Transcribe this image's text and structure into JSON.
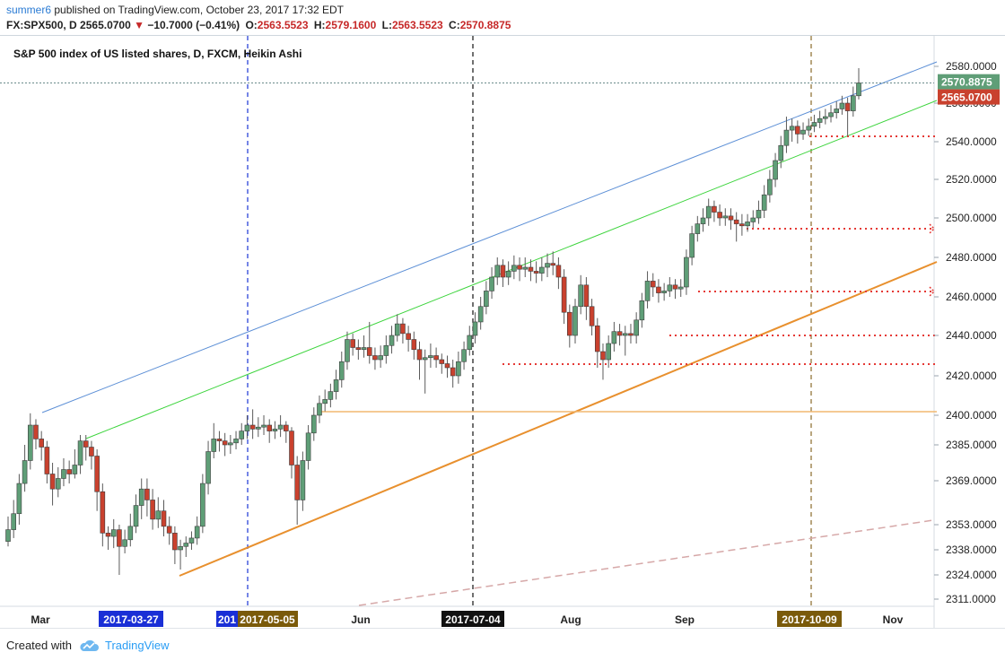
{
  "header": {
    "author": "summer6",
    "published_text": "published on TradingView.com, October 23, 2017 17:32 EDT",
    "symbol": "FX:SPX500, D",
    "last": "2565.0700",
    "change_arrow": "▼",
    "change": "−10.7000 (−0.41%)",
    "o_label": "O:",
    "o_value": "2563.5523",
    "h_label": "H:",
    "h_value": "2579.1600",
    "l_label": "L:",
    "l_value": "2563.5523",
    "c_label": "C:",
    "c_value": "2570.8875"
  },
  "footer": {
    "created_with": "Created with",
    "brand": "TradingView",
    "brand_icon": "tradingview-cloud-icon"
  },
  "colors": {
    "up": "#5f9e77",
    "down": "#c9412e",
    "accent": "#2a9df4"
  },
  "chart_data": {
    "type": "candlestick",
    "title": "S&P 500 index of US listed shares, D, FXCM, Heikin Ashi",
    "y_axis": {
      "position": "right",
      "ticks": [
        "2580.0000",
        "2560.0000",
        "2540.0000",
        "2520.0000",
        "2500.0000",
        "2480.0000",
        "2460.0000",
        "2440.0000",
        "2420.0000",
        "2400.0000",
        "2385.0000",
        "2369.0000",
        "2353.0000",
        "2338.0000",
        "2324.0000",
        "2311.0000"
      ],
      "range": [
        2308,
        2588
      ]
    },
    "x_axis": {
      "month_labels": [
        "Mar",
        "Jun",
        "Aug",
        "Sep",
        "Nov"
      ],
      "date_markers": [
        "2017-03-27",
        "201",
        "2017-05-05",
        "2017-07-04",
        "2017-10-09"
      ]
    },
    "price_labels": [
      {
        "value": "2570.8875",
        "price": 2570.8875,
        "color": "#5f9e77"
      },
      {
        "value": "2565.0700",
        "price": 2565.07,
        "color": "#c9412e"
      }
    ],
    "candles": [
      [
        2343.0,
        2350.0,
        2356.0,
        2340.0
      ],
      [
        2350.0,
        2357.0,
        2362.0,
        2345.0
      ],
      [
        2357.0,
        2368.0,
        2372.0,
        2353.0
      ],
      [
        2368.0,
        2378.0,
        2385.0,
        2365.0
      ],
      [
        2378.0,
        2395.0,
        2401.0,
        2374.0
      ],
      [
        2395.0,
        2388.0,
        2398.0,
        2383.0
      ],
      [
        2388.0,
        2384.0,
        2392.0,
        2378.0
      ],
      [
        2384.0,
        2372.0,
        2387.0,
        2368.0
      ],
      [
        2372.0,
        2366.0,
        2377.0,
        2360.0
      ],
      [
        2366.0,
        2370.0,
        2375.0,
        2363.0
      ],
      [
        2370.0,
        2374.0,
        2379.0,
        2367.0
      ],
      [
        2374.0,
        2372.0,
        2378.0,
        2368.0
      ],
      [
        2372.0,
        2376.0,
        2383.0,
        2370.0
      ],
      [
        2376.0,
        2387.0,
        2390.0,
        2372.0
      ],
      [
        2387.0,
        2384.0,
        2390.0,
        2378.0
      ],
      [
        2384.0,
        2380.0,
        2387.0,
        2374.0
      ],
      [
        2380.0,
        2365.0,
        2383.0,
        2358.0
      ],
      [
        2365.0,
        2348.0,
        2368.0,
        2340.0
      ],
      [
        2348.0,
        2346.0,
        2352.0,
        2338.0
      ],
      [
        2346.0,
        2350.0,
        2355.0,
        2339.0
      ],
      [
        2350.0,
        2340.0,
        2353.0,
        2324.0
      ],
      [
        2340.0,
        2344.0,
        2350.0,
        2336.0
      ],
      [
        2344.0,
        2352.0,
        2357.0,
        2340.0
      ],
      [
        2352.0,
        2360.0,
        2364.0,
        2348.0
      ],
      [
        2360.0,
        2366.0,
        2370.0,
        2355.0
      ],
      [
        2366.0,
        2362.0,
        2370.0,
        2356.0
      ],
      [
        2362.0,
        2355.0,
        2366.0,
        2350.0
      ],
      [
        2355.0,
        2358.0,
        2363.0,
        2351.0
      ],
      [
        2358.0,
        2352.0,
        2362.0,
        2346.0
      ],
      [
        2352.0,
        2348.0,
        2356.0,
        2341.0
      ],
      [
        2348.0,
        2338.0,
        2352.0,
        2330.0
      ],
      [
        2338.0,
        2340.0,
        2344.0,
        2327.0
      ],
      [
        2340.0,
        2342.0,
        2346.0,
        2334.0
      ],
      [
        2342.0,
        2345.0,
        2349.0,
        2338.0
      ],
      [
        2345.0,
        2352.0,
        2356.0,
        2341.0
      ],
      [
        2352.0,
        2368.0,
        2372.0,
        2348.0
      ],
      [
        2368.0,
        2382.0,
        2387.0,
        2364.0
      ],
      [
        2382.0,
        2388.0,
        2396.0,
        2379.0
      ],
      [
        2388.0,
        2387.0,
        2392.0,
        2382.0
      ],
      [
        2387.0,
        2385.0,
        2391.0,
        2380.0
      ],
      [
        2385.0,
        2386.0,
        2390.0,
        2381.0
      ],
      [
        2386.0,
        2388.0,
        2392.0,
        2383.0
      ],
      [
        2388.0,
        2392.0,
        2396.0,
        2385.0
      ],
      [
        2392.0,
        2395.0,
        2400.0,
        2388.0
      ],
      [
        2395.0,
        2393.0,
        2403.0,
        2388.0
      ],
      [
        2393.0,
        2394.0,
        2399.0,
        2389.0
      ],
      [
        2394.0,
        2395.0,
        2400.0,
        2390.0
      ],
      [
        2395.0,
        2392.0,
        2398.0,
        2386.0
      ],
      [
        2392.0,
        2393.0,
        2397.0,
        2388.0
      ],
      [
        2393.0,
        2395.0,
        2400.0,
        2389.0
      ],
      [
        2395.0,
        2392.0,
        2397.0,
        2386.0
      ],
      [
        2392.0,
        2376.0,
        2394.0,
        2370.0
      ],
      [
        2376.0,
        2362.0,
        2380.0,
        2353.0
      ],
      [
        2362.0,
        2378.0,
        2382.0,
        2358.0
      ],
      [
        2378.0,
        2391.0,
        2395.0,
        2374.0
      ],
      [
        2391.0,
        2400.0,
        2404.0,
        2387.0
      ],
      [
        2400.0,
        2406.0,
        2410.0,
        2396.0
      ],
      [
        2406.0,
        2408.0,
        2413.0,
        2402.0
      ],
      [
        2408.0,
        2412.0,
        2416.0,
        2404.0
      ],
      [
        2412.0,
        2418.0,
        2423.0,
        2408.0
      ],
      [
        2418.0,
        2427.0,
        2432.0,
        2414.0
      ],
      [
        2427.0,
        2438.0,
        2442.0,
        2423.0
      ],
      [
        2438.0,
        2434.0,
        2441.0,
        2430.0
      ],
      [
        2434.0,
        2433.0,
        2438.0,
        2428.0
      ],
      [
        2433.0,
        2434.0,
        2440.0,
        2429.0
      ],
      [
        2434.0,
        2430.0,
        2447.0,
        2426.0
      ],
      [
        2430.0,
        2428.0,
        2434.0,
        2423.0
      ],
      [
        2428.0,
        2430.0,
        2435.0,
        2424.0
      ],
      [
        2430.0,
        2435.0,
        2440.0,
        2426.0
      ],
      [
        2435.0,
        2440.0,
        2445.0,
        2431.0
      ],
      [
        2440.0,
        2446.0,
        2451.0,
        2437.0
      ],
      [
        2446.0,
        2441.0,
        2449.0,
        2436.0
      ],
      [
        2441.0,
        2438.0,
        2445.0,
        2432.0
      ],
      [
        2438.0,
        2433.0,
        2442.0,
        2428.0
      ],
      [
        2433.0,
        2428.0,
        2437.0,
        2418.0
      ],
      [
        2428.0,
        2429.0,
        2433.0,
        2411.0
      ],
      [
        2429.0,
        2430.0,
        2436.0,
        2424.0
      ],
      [
        2430.0,
        2428.0,
        2434.0,
        2424.0
      ],
      [
        2428.0,
        2426.0,
        2431.0,
        2421.0
      ],
      [
        2426.0,
        2424.0,
        2430.0,
        2419.0
      ],
      [
        2424.0,
        2420.0,
        2428.0,
        2414.0
      ],
      [
        2420.0,
        2427.0,
        2432.0,
        2416.0
      ],
      [
        2427.0,
        2433.0,
        2437.0,
        2423.0
      ],
      [
        2433.0,
        2440.0,
        2445.0,
        2430.0
      ],
      [
        2440.0,
        2447.0,
        2452.0,
        2436.0
      ],
      [
        2447.0,
        2455.0,
        2460.0,
        2443.0
      ],
      [
        2455.0,
        2463.0,
        2468.0,
        2451.0
      ],
      [
        2463.0,
        2470.0,
        2475.0,
        2459.0
      ],
      [
        2470.0,
        2476.0,
        2480.0,
        2466.0
      ],
      [
        2476.0,
        2470.0,
        2479.0,
        2465.0
      ],
      [
        2470.0,
        2473.0,
        2478.0,
        2466.0
      ],
      [
        2473.0,
        2476.0,
        2481.0,
        2469.0
      ],
      [
        2476.0,
        2474.0,
        2480.0,
        2468.0
      ],
      [
        2474.0,
        2475.0,
        2480.0,
        2470.0
      ],
      [
        2475.0,
        2473.0,
        2479.0,
        2468.0
      ],
      [
        2473.0,
        2472.0,
        2478.0,
        2467.0
      ],
      [
        2472.0,
        2475.0,
        2480.0,
        2468.0
      ],
      [
        2475.0,
        2477.0,
        2482.0,
        2470.0
      ],
      [
        2477.0,
        2476.0,
        2483.0,
        2471.0
      ],
      [
        2476.0,
        2470.0,
        2480.0,
        2464.0
      ],
      [
        2470.0,
        2452.0,
        2474.0,
        2446.0
      ],
      [
        2452.0,
        2440.0,
        2456.0,
        2434.0
      ],
      [
        2440.0,
        2455.0,
        2459.0,
        2436.0
      ],
      [
        2455.0,
        2466.0,
        2471.0,
        2451.0
      ],
      [
        2466.0,
        2455.0,
        2470.0,
        2448.0
      ],
      [
        2455.0,
        2445.0,
        2459.0,
        2440.0
      ],
      [
        2445.0,
        2432.0,
        2449.0,
        2424.0
      ],
      [
        2432.0,
        2428.0,
        2436.0,
        2418.0
      ],
      [
        2428.0,
        2436.0,
        2440.0,
        2424.0
      ],
      [
        2436.0,
        2442.0,
        2447.0,
        2432.0
      ],
      [
        2442.0,
        2440.0,
        2446.0,
        2435.0
      ],
      [
        2440.0,
        2441.0,
        2445.0,
        2430.0
      ],
      [
        2441.0,
        2440.0,
        2446.0,
        2436.0
      ],
      [
        2440.0,
        2448.0,
        2452.0,
        2436.0
      ],
      [
        2448.0,
        2458.0,
        2462.0,
        2444.0
      ],
      [
        2458.0,
        2468.0,
        2473.0,
        2454.0
      ],
      [
        2468.0,
        2465.0,
        2472.0,
        2460.0
      ],
      [
        2465.0,
        2462.0,
        2469.0,
        2457.0
      ],
      [
        2462.0,
        2463.0,
        2467.0,
        2458.0
      ],
      [
        2463.0,
        2466.0,
        2470.0,
        2460.0
      ],
      [
        2466.0,
        2464.0,
        2469.0,
        2459.0
      ],
      [
        2464.0,
        2465.0,
        2469.0,
        2460.0
      ],
      [
        2465.0,
        2480.0,
        2484.0,
        2461.0
      ],
      [
        2480.0,
        2492.0,
        2496.0,
        2476.0
      ],
      [
        2492.0,
        2497.0,
        2501.0,
        2488.0
      ],
      [
        2497.0,
        2500.0,
        2505.0,
        2493.0
      ],
      [
        2500.0,
        2506.0,
        2510.0,
        2496.0
      ],
      [
        2506.0,
        2503.0,
        2509.0,
        2498.0
      ],
      [
        2503.0,
        2500.0,
        2507.0,
        2496.0
      ],
      [
        2500.0,
        2501.0,
        2505.0,
        2496.0
      ],
      [
        2501.0,
        2499.0,
        2505.0,
        2494.0
      ],
      [
        2499.0,
        2497.0,
        2503.0,
        2488.0
      ],
      [
        2497.0,
        2496.0,
        2502.0,
        2491.0
      ],
      [
        2496.0,
        2498.0,
        2502.0,
        2493.0
      ],
      [
        2498.0,
        2500.0,
        2504.0,
        2495.0
      ],
      [
        2500.0,
        2504.0,
        2509.0,
        2497.0
      ],
      [
        2504.0,
        2512.0,
        2517.0,
        2500.0
      ],
      [
        2512.0,
        2520.0,
        2525.0,
        2508.0
      ],
      [
        2520.0,
        2530.0,
        2534.0,
        2516.0
      ],
      [
        2530.0,
        2538.0,
        2543.0,
        2526.0
      ],
      [
        2538.0,
        2546.0,
        2553.0,
        2534.0
      ],
      [
        2546.0,
        2548.0,
        2552.0,
        2540.0
      ],
      [
        2548.0,
        2544.0,
        2551.0,
        2539.0
      ],
      [
        2544.0,
        2546.0,
        2550.0,
        2541.0
      ],
      [
        2546.0,
        2548.0,
        2552.0,
        2543.0
      ],
      [
        2548.0,
        2550.0,
        2554.0,
        2545.0
      ],
      [
        2550.0,
        2552.0,
        2556.0,
        2547.0
      ],
      [
        2552.0,
        2553.0,
        2557.0,
        2549.0
      ],
      [
        2553.0,
        2555.0,
        2559.0,
        2550.0
      ],
      [
        2555.0,
        2557.0,
        2561.0,
        2552.0
      ],
      [
        2557.0,
        2560.0,
        2564.0,
        2554.0
      ],
      [
        2560.0,
        2556.0,
        2563.0,
        2543.0
      ],
      [
        2556.0,
        2564.0,
        2569.0,
        2553.0
      ],
      [
        2564.0,
        2571.0,
        2579.0,
        2562.0
      ]
    ]
  }
}
